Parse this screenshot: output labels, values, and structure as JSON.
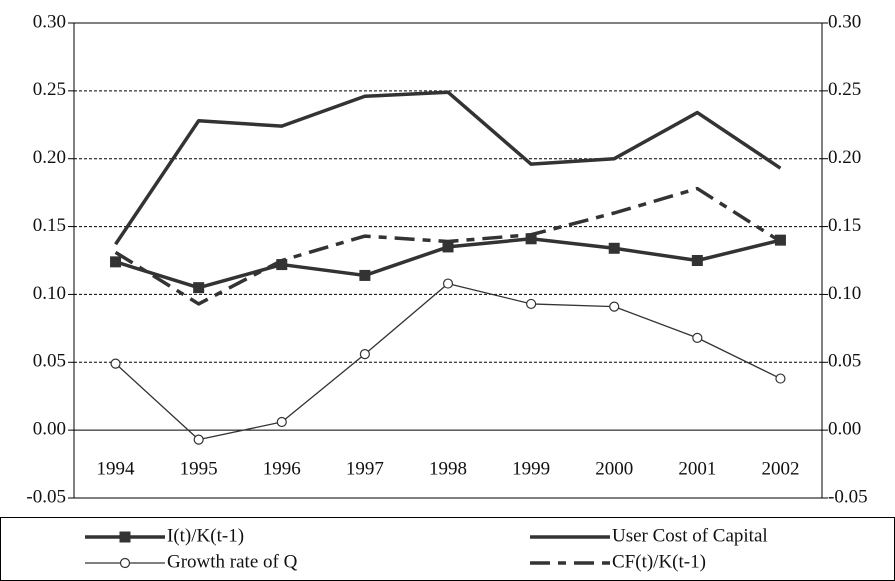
{
  "chart_data": {
    "type": "line",
    "categories": [
      "1994",
      "1995",
      "1996",
      "1997",
      "1998",
      "1999",
      "2000",
      "2001",
      "2002"
    ],
    "series": [
      {
        "name": "I(t)/K(t-1)",
        "color": "#333333",
        "marker": "square",
        "line_style": "solid",
        "line_width": 3.5,
        "values": [
          0.124,
          0.105,
          0.122,
          0.114,
          0.135,
          0.141,
          0.134,
          0.125,
          0.14
        ]
      },
      {
        "name": "User Cost of Capital",
        "color": "#333333",
        "marker": "none",
        "line_style": "solid",
        "line_width": 3.5,
        "values": [
          0.137,
          0.228,
          0.224,
          0.246,
          0.249,
          0.196,
          0.2,
          0.234,
          0.193
        ]
      },
      {
        "name": "Growth rate of Q",
        "color": "#333333",
        "marker": "circle",
        "line_style": "solid",
        "line_width": 1.3,
        "values": [
          0.049,
          -0.007,
          0.006,
          0.056,
          0.108,
          0.093,
          0.091,
          0.068,
          0.038
        ]
      },
      {
        "name": "CF(t)/K(t-1)",
        "color": "#333333",
        "marker": "none",
        "line_style": "dashdot",
        "line_width": 3.5,
        "values": [
          0.131,
          0.093,
          0.125,
          0.143,
          0.139,
          0.144,
          0.16,
          0.178,
          0.139
        ]
      }
    ],
    "ylim": [
      -0.05,
      0.3
    ],
    "yticks": [
      -0.05,
      {
        "value": 0.0,
        "label": "0.00"
      },
      0.05,
      {
        "value": 0.1,
        "label": "0.10"
      },
      0.15,
      {
        "value": 0.2,
        "label": "0.20"
      },
      0.25,
      {
        "value": 0.3,
        "label": "0.30"
      }
    ],
    "y2lim": [
      -0.05,
      0.3
    ],
    "y2ticks": [
      -0.05,
      {
        "value": 0.0,
        "label": "0.00"
      },
      0.05,
      {
        "value": 0.1,
        "label": "0.10"
      },
      0.15,
      {
        "value": 0.2,
        "label": "0.20"
      },
      0.25,
      {
        "value": 0.3,
        "label": "0.30"
      }
    ],
    "grid": true,
    "legend": "bottom"
  }
}
